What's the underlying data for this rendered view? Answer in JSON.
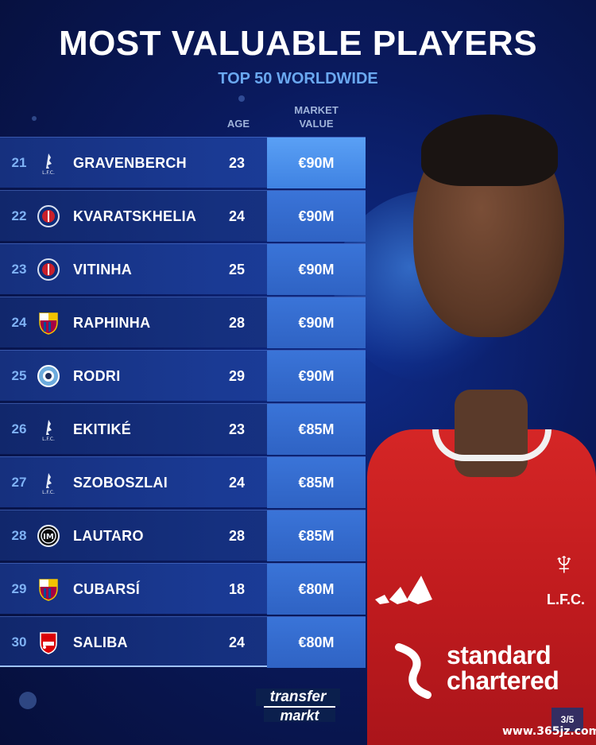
{
  "header": {
    "title": "MOST VALUABLE PLAYERS",
    "subtitle": "TOP 50 WORLDWIDE"
  },
  "columns": {
    "age": "AGE",
    "market_value_line1": "MARKET",
    "market_value_line2": "VALUE"
  },
  "rows": [
    {
      "rank": "21",
      "club_icon": "liverpool-crest-icon",
      "name": "GRAVENBERCH",
      "age": "23",
      "value": "€90M"
    },
    {
      "rank": "22",
      "club_icon": "psg-crest-icon",
      "name": "KVARATSKHELIA",
      "age": "24",
      "value": "€90M"
    },
    {
      "rank": "23",
      "club_icon": "psg-crest-icon",
      "name": "VITINHA",
      "age": "25",
      "value": "€90M"
    },
    {
      "rank": "24",
      "club_icon": "barcelona-crest-icon",
      "name": "RAPHINHA",
      "age": "28",
      "value": "€90M"
    },
    {
      "rank": "25",
      "club_icon": "man-city-crest-icon",
      "name": "RODRI",
      "age": "29",
      "value": "€90M"
    },
    {
      "rank": "26",
      "club_icon": "liverpool-crest-icon",
      "name": "EKITIKÉ",
      "age": "23",
      "value": "€85M"
    },
    {
      "rank": "27",
      "club_icon": "liverpool-crest-icon",
      "name": "SZOBOSZLAI",
      "age": "24",
      "value": "€85M"
    },
    {
      "rank": "28",
      "club_icon": "inter-crest-icon",
      "name": "LAUTARO",
      "age": "28",
      "value": "€85M"
    },
    {
      "rank": "29",
      "club_icon": "barcelona-crest-icon",
      "name": "CUBARSÍ",
      "age": "18",
      "value": "€80M"
    },
    {
      "rank": "30",
      "club_icon": "arsenal-crest-icon",
      "name": "SALIBA",
      "age": "24",
      "value": "€80M"
    }
  ],
  "shirt": {
    "sponsor_line1": "standard",
    "sponsor_line2": "chartered",
    "crest_text": "L.F.C."
  },
  "footer": {
    "logo_top": "transfer",
    "logo_bottom": "markt",
    "page": "3/5",
    "watermark": "www.365jz.com"
  },
  "colors": {
    "background": "#0a1a5e",
    "accent": "#6aa8f0",
    "value_cell": "#2f63c4",
    "shirt_red": "#c01b1e"
  }
}
